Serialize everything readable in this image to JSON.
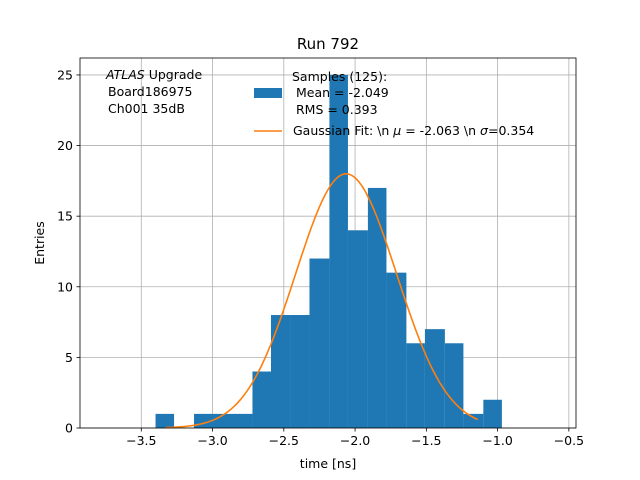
{
  "chart_data": {
    "type": "bar",
    "title": "Run 792",
    "xlabel": "time [ns]",
    "ylabel": "Entries",
    "xlim": [
      -3.93,
      -0.45
    ],
    "ylim": [
      0,
      26.2
    ],
    "xticks": [
      -3.5,
      -3.0,
      -2.5,
      -2.0,
      -1.5,
      -1.0,
      -0.5
    ],
    "xtick_labels": [
      "−3.5",
      "−3.0",
      "−2.5",
      "−2.0",
      "−1.5",
      "−1.0",
      "−0.5"
    ],
    "yticks": [
      0,
      5,
      10,
      15,
      20,
      25
    ],
    "ytick_labels": [
      "0",
      "5",
      "10",
      "15",
      "20",
      "25"
    ],
    "grid": true,
    "legend_position": "top-right",
    "annotation": {
      "italic": "ATLAS",
      "rest": " Upgrade",
      "line2": "Board186975",
      "line3": "Ch001 35dB"
    },
    "histogram": {
      "name_lines": [
        "Samples (125):",
        " Mean = -2.049",
        " RMS = 0.393"
      ],
      "color": "#1f77b4",
      "bins": [
        {
          "x0": -3.4,
          "x1": -3.27,
          "count": 1
        },
        {
          "x0": -3.27,
          "x1": -3.13,
          "count": 0
        },
        {
          "x0": -3.13,
          "x1": -2.99,
          "count": 1
        },
        {
          "x0": -2.99,
          "x1": -2.86,
          "count": 1
        },
        {
          "x0": -2.86,
          "x1": -2.72,
          "count": 1
        },
        {
          "x0": -2.72,
          "x1": -2.59,
          "count": 4
        },
        {
          "x0": -2.59,
          "x1": -2.45,
          "count": 8
        },
        {
          "x0": -2.45,
          "x1": -2.32,
          "count": 8
        },
        {
          "x0": -2.32,
          "x1": -2.18,
          "count": 12
        },
        {
          "x0": -2.18,
          "x1": -2.05,
          "count": 25
        },
        {
          "x0": -2.05,
          "x1": -1.91,
          "count": 14
        },
        {
          "x0": -1.91,
          "x1": -1.78,
          "count": 17
        },
        {
          "x0": -1.78,
          "x1": -1.64,
          "count": 11
        },
        {
          "x0": -1.64,
          "x1": -1.51,
          "count": 6
        },
        {
          "x0": -1.51,
          "x1": -1.37,
          "count": 7
        },
        {
          "x0": -1.37,
          "x1": -1.24,
          "count": 6
        },
        {
          "x0": -1.24,
          "x1": -1.1,
          "count": 1
        },
        {
          "x0": -1.1,
          "x1": -0.97,
          "count": 2
        }
      ]
    },
    "fit": {
      "label_prefix": "Gaussian Fit: \\n ",
      "mu_symbol": "μ",
      "mu_text": " = -2.063 \\n ",
      "sigma_symbol": "σ",
      "sigma_text": "=0.354",
      "color": "#ff7f0e",
      "mu": -2.063,
      "sigma": 0.354,
      "amplitude": 18.0,
      "x_range": [
        -3.33,
        -1.14
      ]
    }
  }
}
